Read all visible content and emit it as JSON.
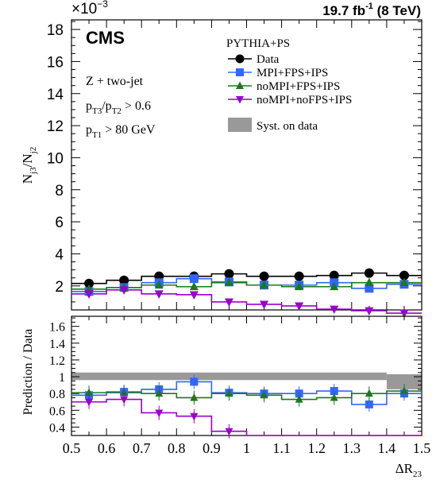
{
  "header": {
    "exponent_base": "×10",
    "exponent_power": "−3",
    "lumi_value": "19.7 fb",
    "lumi_power": "-1",
    "energy": " (8 TeV)",
    "experiment": "CMS"
  },
  "selection": {
    "line1": "Z + two-jet",
    "line2_base1": "p",
    "line2_sub1": "T3",
    "line2_mid": "/p",
    "line2_sub2": "T2",
    "line2_tail": " > 0.6",
    "line3_base": "p",
    "line3_sub": "T1",
    "line3_tail": " > 80 GeV"
  },
  "axis_text": {
    "ylabel_main_base1": "N",
    "ylabel_main_sub1": "j3",
    "ylabel_main_mid": "/N",
    "ylabel_main_sub2": "j2",
    "ylabel_ratio": "Prediction / Data",
    "xlabel_base": "ΔR",
    "xlabel_sub": "23"
  },
  "legend": {
    "header": "PYTHIA+PS",
    "syst_label": "Syst. on data"
  },
  "chart_data": {
    "type": "line",
    "x_edges": [
      0.5,
      0.6,
      0.7,
      0.8,
      0.9,
      1.0,
      1.1,
      1.2,
      1.3,
      1.4,
      1.5
    ],
    "x_centers": [
      0.55,
      0.65,
      0.75,
      0.85,
      0.95,
      1.05,
      1.15,
      1.25,
      1.35,
      1.45
    ],
    "xlim": [
      0.5,
      1.5
    ],
    "xticks": [
      "0.5",
      "0.6",
      "0.7",
      "0.8",
      "0.9",
      "1",
      "1.1",
      "1.2",
      "1.3",
      "1.4",
      "1.5"
    ],
    "main": {
      "ylim": [
        0.5,
        18.6
      ],
      "yticks": [
        "2",
        "4",
        "6",
        "8",
        "10",
        "12",
        "14",
        "16",
        "18"
      ],
      "series": [
        {
          "name": "Data",
          "color": "#000000",
          "marker": "circle",
          "values": [
            2.15,
            2.35,
            2.6,
            2.6,
            2.75,
            2.6,
            2.6,
            2.65,
            2.8,
            2.65
          ]
        },
        {
          "name": "MPI+FPS+IPS",
          "color": "#3366ff",
          "marker": "square",
          "values": [
            1.65,
            1.9,
            2.2,
            2.45,
            2.25,
            2.05,
            2.05,
            2.2,
            1.85,
            2.1
          ]
        },
        {
          "name": "noMPI+FPS+IPS",
          "color": "#1a7a1a",
          "marker": "triangle-up",
          "values": [
            1.8,
            1.9,
            2.05,
            1.95,
            2.2,
            2.05,
            1.95,
            1.95,
            2.2,
            2.2
          ]
        },
        {
          "name": "noMPI+noFPS+IPS",
          "color": "#9900cc",
          "marker": "triangle-down",
          "values": [
            1.5,
            1.75,
            1.5,
            1.45,
            1.0,
            0.85,
            0.75,
            0.55,
            0.45,
            0.3
          ]
        }
      ]
    },
    "ratio": {
      "ylim": [
        0.3,
        1.72
      ],
      "yticks": [
        "0.4",
        "0.6",
        "0.8",
        "1",
        "1.2",
        "1.4",
        "1.6"
      ],
      "syst_band": [
        {
          "x0": 0.5,
          "x1": 1.4,
          "lo": 0.96,
          "hi": 1.05
        },
        {
          "x0": 1.4,
          "x1": 1.5,
          "lo": 0.85,
          "hi": 1.03
        }
      ],
      "series": [
        {
          "name": "MPI+FPS+IPS",
          "color": "#3366ff",
          "marker": "square",
          "values": [
            0.78,
            0.82,
            0.85,
            0.94,
            0.81,
            0.8,
            0.8,
            0.83,
            0.67,
            0.8
          ]
        },
        {
          "name": "noMPI+FPS+IPS",
          "color": "#1a7a1a",
          "marker": "triangle-up",
          "values": [
            0.81,
            0.81,
            0.8,
            0.75,
            0.8,
            0.78,
            0.73,
            0.75,
            0.8,
            0.83
          ]
        },
        {
          "name": "noMPI+noFPS+IPS",
          "color": "#9900cc",
          "marker": "triangle-down",
          "values": [
            0.7,
            0.73,
            0.57,
            0.53,
            0.35,
            0.3,
            0.3,
            0.3,
            0.3,
            0.3
          ]
        }
      ]
    }
  }
}
